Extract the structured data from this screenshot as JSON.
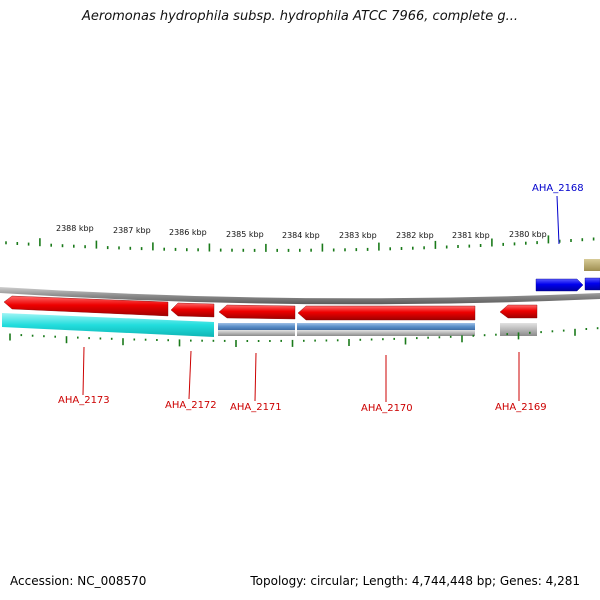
{
  "title": "Aeromonas hydrophila subsp. hydrophila ATCC 7966, complete g...",
  "footer": {
    "accession": "Accession: NC_008570",
    "topology": "Topology: circular; Length: 4,744,448 bp; Genes: 4,281"
  },
  "colors": {
    "forward_gene": "#0000ee",
    "reverse_gene": "#ee0000",
    "gene_label_reverse": "#cc0000",
    "gene_label_forward": "#0000cc",
    "tick": "#1a7a1a",
    "backbone": "#888888",
    "cds_cyan": "#22dddd",
    "cds_steel": "#5b8fc9",
    "cds_gray": "#b8b8b8",
    "cds_olive": "#b8a868"
  },
  "scale_labels": [
    "2388 kbp",
    "2387 kbp",
    "2386 kbp",
    "2385 kbp",
    "2384 kbp",
    "2383 kbp",
    "2382 kbp",
    "2381 kbp",
    "2380 kbp"
  ],
  "genes": [
    {
      "label": "AHA_2168",
      "strand": "forward",
      "start_kbp": 2379.6,
      "end_kbp": 2379.95
    },
    {
      "label": "AHA_2169",
      "strand": "reverse",
      "start_kbp": 2380.25,
      "end_kbp": 2380.55
    },
    {
      "label": "AHA_2170",
      "strand": "reverse",
      "start_kbp": 2381.25,
      "end_kbp": 2383.9
    },
    {
      "label": "AHA_2171",
      "strand": "reverse",
      "start_kbp": 2383.95,
      "end_kbp": 2385.05
    },
    {
      "label": "AHA_2172",
      "strand": "reverse",
      "start_kbp": 2385.1,
      "end_kbp": 2385.9
    },
    {
      "label": "AHA_2173",
      "strand": "reverse",
      "start_kbp": 2385.95,
      "end_kbp": 2388.85
    }
  ]
}
